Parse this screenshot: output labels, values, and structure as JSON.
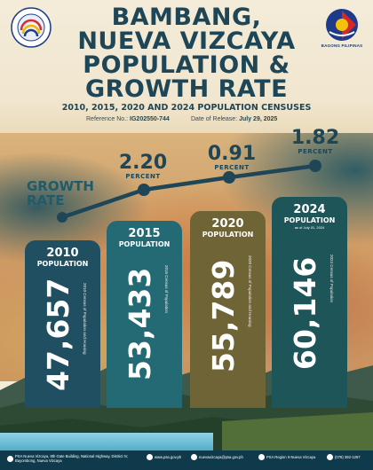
{
  "header": {
    "title_lines": [
      "BAMBANG,",
      "NUEVA VIZCAYA",
      "POPULATION &",
      "GROWTH RATE"
    ],
    "subtitle": "2010, 2015, 2020 AND 2024 POPULATION CENSUSES",
    "reference_label": "Reference No.:",
    "reference_value": "IG202550-744",
    "release_label": "Date of Release:",
    "release_value": "July 29, 2025"
  },
  "logos": {
    "bagong_pilipinas": "BAGONG PILIPINAS"
  },
  "growth": {
    "label_line1": "GROWTH",
    "label_line2": "RATE",
    "rates": [
      {
        "value": "2.20",
        "unit": "PERCENT"
      },
      {
        "value": "0.91",
        "unit": "PERCENT"
      },
      {
        "value": "1.82",
        "unit": "PERCENT"
      }
    ]
  },
  "population": [
    {
      "year": "2010",
      "label": "POPULATION",
      "as_of": "",
      "value": "47,657",
      "source": "2010 Census of Population and Housing",
      "color": "#1f4f60"
    },
    {
      "year": "2015",
      "label": "POPULATION",
      "as_of": "",
      "value": "53,433",
      "source": "2015 Census of Population",
      "color": "#236a74"
    },
    {
      "year": "2020",
      "label": "POPULATION",
      "as_of": "",
      "value": "55,789",
      "source": "2020 Census of Population and Housing",
      "color": "#6f6436"
    },
    {
      "year": "2024",
      "label": "POPULATION",
      "as_of": "as of July 01, 2024",
      "value": "60,146",
      "source": "2024 Census of Population",
      "color": "#1e5558"
    }
  ],
  "footer": {
    "address": "PSA Nueva Vizcaya, 8th Gate Building, National Highway, District IV, Bayombong, Nueva Vizcaya",
    "website": "www.psa.gov.ph",
    "email": "nuevavizcaya@psa.gov.ph",
    "facebook": "PSA Region II-Nueva Vizcaya",
    "phone": "(078) 392-1267"
  }
}
